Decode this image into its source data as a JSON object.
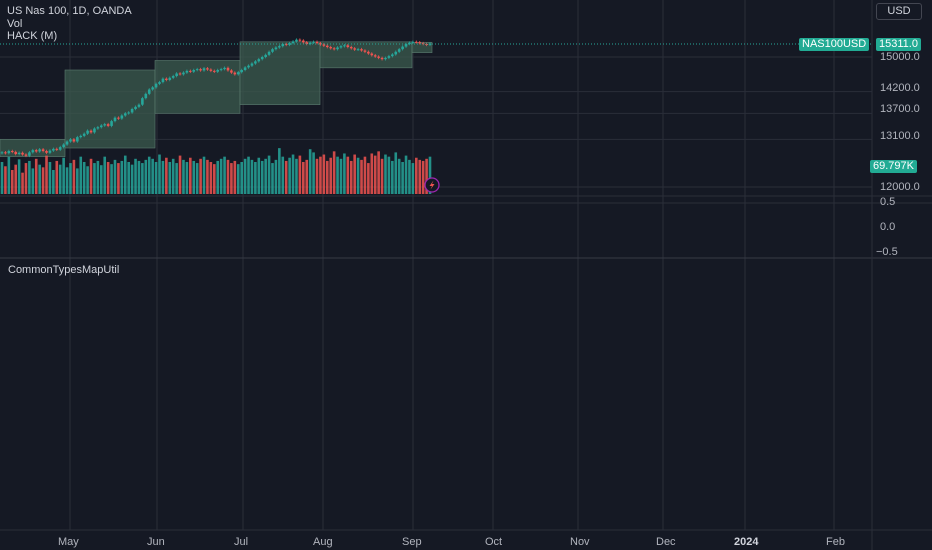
{
  "legend": {
    "symbol": "US Nas 100, 1D, OANDA",
    "vol": "Vol",
    "indicator": "HACK (M)"
  },
  "currency": "USD",
  "price_axis": {
    "labels": [
      "15000.0",
      "14200.0",
      "13700.0",
      "13100.0",
      "12000.0"
    ],
    "symbol_tag": "NAS100USD",
    "last_price_tag": "15311.0",
    "volume_tag": "69.797K"
  },
  "indicator_axis": {
    "labels": [
      "0.5",
      "0.0",
      "−0.5"
    ]
  },
  "pane": {
    "title": "CommonTypesMapUtil"
  },
  "time_axis": {
    "months": [
      "May",
      "Jun",
      "Jul",
      "Aug",
      "Sep",
      "Oct",
      "Nov",
      "Dec",
      "2024",
      "Feb"
    ]
  },
  "colors": {
    "background": "#151924",
    "grid": "#2a2e39",
    "up": "#26a69a",
    "down": "#ef5350",
    "band_fill": "#3b5b4e",
    "tag": "#22ab94"
  },
  "chart_data": {
    "type": "candlestick",
    "symbol": "NAS100USD",
    "timeframe": "1D",
    "last_price": 15311.0,
    "last_volume": "69.797K",
    "y_ticks": [
      12000,
      13100,
      13700,
      14200,
      15000
    ],
    "x_ticks": [
      "May",
      "Jun",
      "Jul",
      "Aug",
      "Sep",
      "Oct",
      "Nov",
      "Dec",
      "2024",
      "Feb"
    ],
    "close_series": [
      12800,
      12780,
      12830,
      12810,
      12760,
      12790,
      12750,
      12720,
      12800,
      12850,
      12820,
      12870,
      12830,
      12790,
      12840,
      12880,
      12860,
      12920,
      12980,
      13050,
      13100,
      13050,
      13150,
      13180,
      13230,
      13300,
      13260,
      13350,
      13380,
      13420,
      13450,
      13410,
      13520,
      13600,
      13580,
      13650,
      13700,
      13720,
      13800,
      13850,
      13900,
      14050,
      14150,
      14250,
      14300,
      14380,
      14420,
      14500,
      14470,
      14520,
      14560,
      14620,
      14600,
      14640,
      14680,
      14660,
      14700,
      14720,
      14690,
      14740,
      14710,
      14680,
      14660,
      14700,
      14720,
      14750,
      14690,
      14640,
      14600,
      14650,
      14700,
      14760,
      14800,
      14850,
      14900,
      14950,
      15000,
      15050,
      15120,
      15180,
      15220,
      15250,
      15300,
      15280,
      15320,
      15360,
      15400,
      15380,
      15340,
      15300,
      15330,
      15350,
      15320,
      15290,
      15260,
      15230,
      15200,
      15180,
      15220,
      15250,
      15270,
      15230,
      15200,
      15170,
      15180,
      15150,
      15120,
      15080,
      15040,
      15010,
      14980,
      14950,
      14980,
      15020,
      15060,
      15120,
      15180,
      15240,
      15300,
      15330,
      15350,
      15340,
      15320,
      15300,
      15280,
      15311
    ],
    "volume_series": [
      60,
      52,
      70,
      45,
      55,
      65,
      40,
      58,
      62,
      48,
      66,
      55,
      50,
      72,
      60,
      45,
      62,
      55,
      68,
      50,
      58,
      64,
      48,
      70,
      60,
      52,
      66,
      58,
      62,
      54,
      70,
      60,
      56,
      64,
      58,
      62,
      72,
      60,
      55,
      66,
      62,
      58,
      64,
      70,
      66,
      60,
      74,
      62,
      68,
      60,
      66,
      58,
      72,
      64,
      60,
      68,
      62,
      58,
      66,
      70,
      64,
      60,
      56,
      62,
      66,
      70,
      64,
      58,
      62,
      56,
      60,
      66,
      70,
      64,
      60,
      68,
      62,
      66,
      72,
      58,
      64,
      86,
      70,
      62,
      68,
      74,
      66,
      72,
      60,
      64,
      84,
      78,
      66,
      70,
      74,
      62,
      68,
      80,
      70,
      66,
      76,
      70,
      62,
      74,
      68,
      64,
      70,
      58,
      76,
      72,
      80,
      66,
      74,
      70,
      62,
      78,
      66,
      60,
      72,
      64,
      58,
      68,
      64,
      62,
      66,
      70
    ],
    "indicator_y_ticks": [
      0.5,
      0.0,
      -0.5
    ]
  }
}
